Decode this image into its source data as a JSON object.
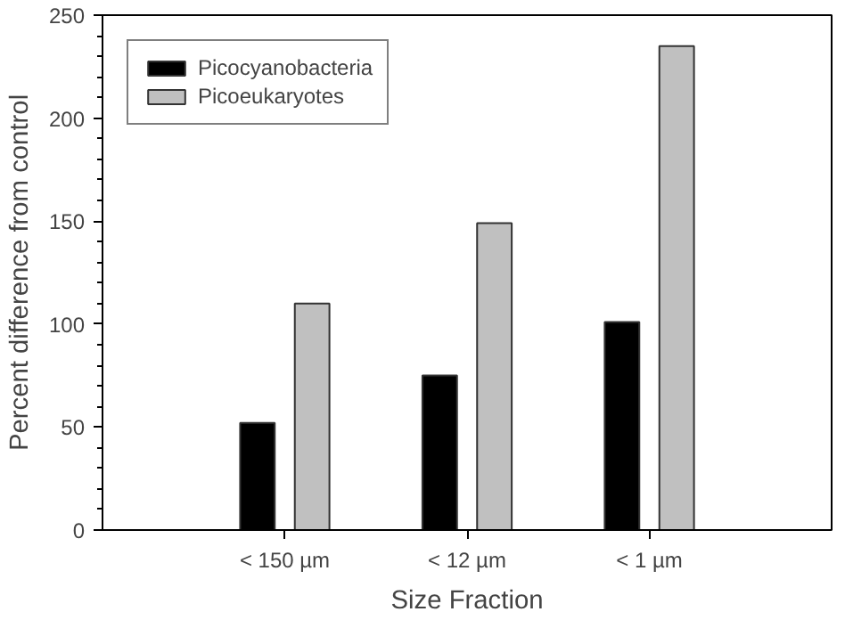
{
  "chart_data": {
    "type": "bar",
    "xlabel": "Size Fraction",
    "ylabel": "Percent difference from control",
    "categories": [
      "< 150 µm",
      "< 12 µm",
      "< 1 µm"
    ],
    "series": [
      {
        "name": "Picocyanobacteria",
        "color": "#000000",
        "values": [
          52,
          75,
          101
        ]
      },
      {
        "name": "Picoeukaryotes",
        "color": "#c0c0c0",
        "values": [
          110,
          149,
          235
        ]
      }
    ],
    "ylim": [
      0,
      250
    ],
    "yticks": [
      0,
      50,
      100,
      150,
      200,
      250
    ],
    "grid": false,
    "legend": "top left"
  }
}
